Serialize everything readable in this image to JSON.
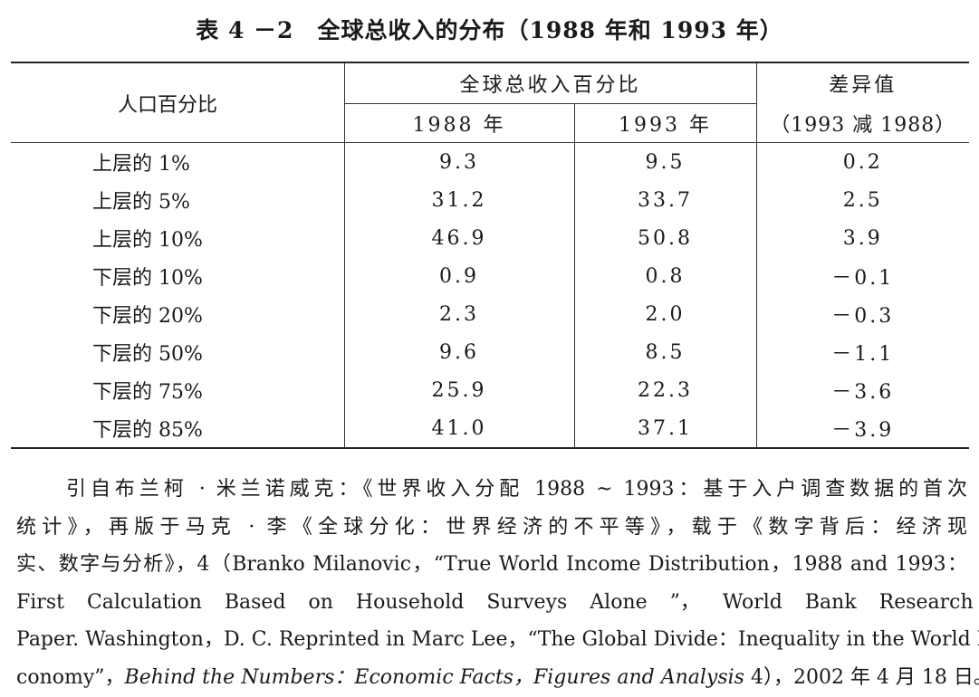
{
  "title": "表 4 －2　全球总收入的分布（1988 年和 1993 年）",
  "table": {
    "col_header": "人口百分比",
    "group_header": "全球总收入百分比",
    "diff_header": "差异值",
    "diff_sub": "（1993 减 1988）",
    "year1": "1988 年",
    "year2": "1993 年",
    "rows": [
      {
        "label": "上层的 1%",
        "y1988": "9.3",
        "y1993": "9.5",
        "diff": "0.2"
      },
      {
        "label": "上层的 5%",
        "y1988": "31.2",
        "y1993": "33.7",
        "diff": "2.5"
      },
      {
        "label": "上层的 10%",
        "y1988": "46.9",
        "y1993": "50.8",
        "diff": "3.9"
      },
      {
        "label": "下层的 10%",
        "y1988": "0.9",
        "y1993": "0.8",
        "diff": "－0.1"
      },
      {
        "label": "下层的 20%",
        "y1988": "2.3",
        "y1993": "2.0",
        "diff": "－0.3"
      },
      {
        "label": "下层的 50%",
        "y1988": "9.6",
        "y1993": "8.5",
        "diff": "－1.1"
      },
      {
        "label": "下层的 75%",
        "y1988": "25.9",
        "y1993": "22.3",
        "diff": "－3.6"
      },
      {
        "label": "下层的 85%",
        "y1988": "41.0",
        "y1993": "37.1",
        "diff": "－3.9"
      }
    ]
  },
  "caption": {
    "line1": "引自布兰柯 · 米兰诺威克：《世界收入分配 1988 ~ 1993：基于入户调查数据的首次",
    "line2": "统计》，再版于马克 · 李《全球分化：世界经济的不平等》，载于《数字背后：经济现",
    "line3": "实、数字与分析》，4（Branko Milanovic，“True World Income Distribution，1988 and 1993：",
    "line4": "First Calculation Based on Household Surveys Alone ”， World Bank Research",
    "line5": "Paper. Washington，D. C. Reprinted in Marc Lee，“The Global Divide：Inequality in the World E-",
    "line6_a": "conomy”，",
    "line6_italic": "Behind the Numbers：Economic Facts，Figures and Analysis",
    "line6_b": " 4），2002 年 4 月 18 日。"
  }
}
